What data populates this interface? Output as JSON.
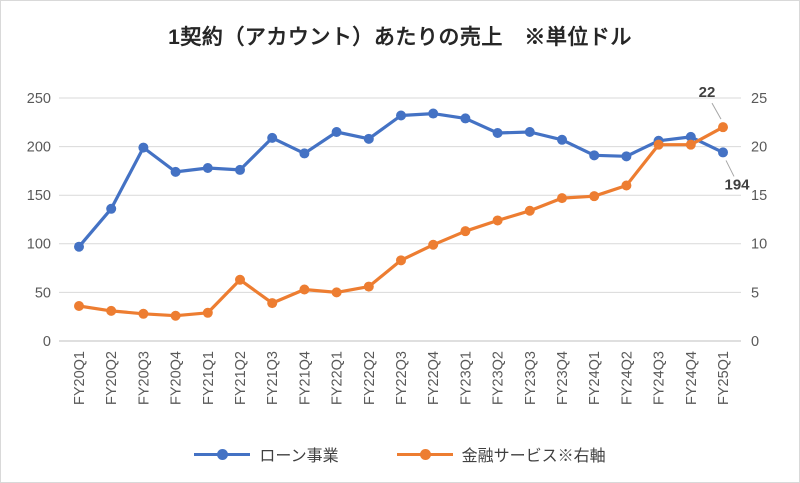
{
  "title": "1契約（アカウント）あたりの売上　※単位ドル",
  "chart_data": {
    "type": "line",
    "categories": [
      "FY20Q1",
      "FY20Q2",
      "FY20Q3",
      "FY20Q4",
      "FY21Q1",
      "FY21Q2",
      "FY21Q3",
      "FY21Q4",
      "FY22Q1",
      "FY22Q2",
      "FY22Q3",
      "FY22Q4",
      "FY23Q1",
      "FY23Q2",
      "FY23Q3",
      "FY23Q4",
      "FY24Q1",
      "FY24Q2",
      "FY24Q3",
      "FY24Q4",
      "FY25Q1"
    ],
    "series": [
      {
        "name": "ローン事業",
        "axis": "left",
        "color": "#4472C4",
        "values": [
          97,
          136,
          199,
          174,
          178,
          176,
          209,
          193,
          215,
          208,
          232,
          234,
          229,
          214,
          215,
          207,
          191,
          190,
          206,
          210,
          194
        ]
      },
      {
        "name": "金融サービス※右軸",
        "axis": "right",
        "color": "#ED7D31",
        "values": [
          3.6,
          3.1,
          2.8,
          2.6,
          2.9,
          6.3,
          3.9,
          5.3,
          5.0,
          5.6,
          8.3,
          9.9,
          11.3,
          12.4,
          13.4,
          14.7,
          14.9,
          16.0,
          20.2,
          20.2,
          22
        ]
      }
    ],
    "left_axis": {
      "min": 0,
      "max": 250,
      "ticks": [
        0,
        50,
        100,
        150,
        200,
        250
      ]
    },
    "right_axis": {
      "min": 0,
      "max": 25,
      "ticks": [
        0,
        5,
        10,
        15,
        20,
        25
      ]
    },
    "annotations": [
      {
        "text": "22",
        "series": 1,
        "point": 20,
        "placement": "above-left"
      },
      {
        "text": "194",
        "series": 0,
        "point": 20,
        "placement": "below-right"
      }
    ],
    "grid": true,
    "legend_position": "bottom"
  }
}
